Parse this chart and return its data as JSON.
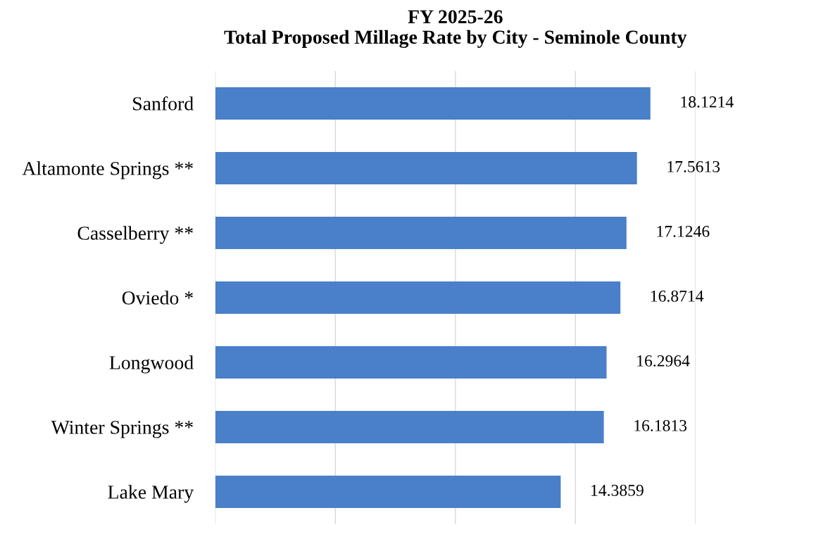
{
  "chart_data": {
    "type": "bar",
    "orientation": "horizontal",
    "title": "FY 2025-26\nTotal Proposed Millage Rate by City - Seminole County",
    "categories": [
      "Sanford",
      "Altamonte Springs **",
      "Casselberry **",
      "Oviedo *",
      "Longwood",
      "Winter Springs **",
      "Lake Mary"
    ],
    "values": [
      18.1214,
      17.5613,
      17.1246,
      16.8714,
      16.2964,
      16.1813,
      14.3859
    ],
    "color": "#4a7fc9",
    "xlim": [
      0,
      20
    ],
    "xticks": [
      0,
      5,
      10,
      15,
      20
    ],
    "grid": "x",
    "tick_labels": "y",
    "data_labels": true
  }
}
